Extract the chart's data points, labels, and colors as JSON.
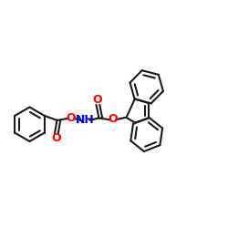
{
  "bg": "#ffffff",
  "bc": "#1a1a1a",
  "oc": "#ff0000",
  "nc": "#0000cc",
  "lw": 1.5,
  "figsize": [
    2.5,
    2.5
  ],
  "dpi": 100,
  "xlim": [
    0,
    1
  ],
  "ylim": [
    0.05,
    0.95
  ]
}
